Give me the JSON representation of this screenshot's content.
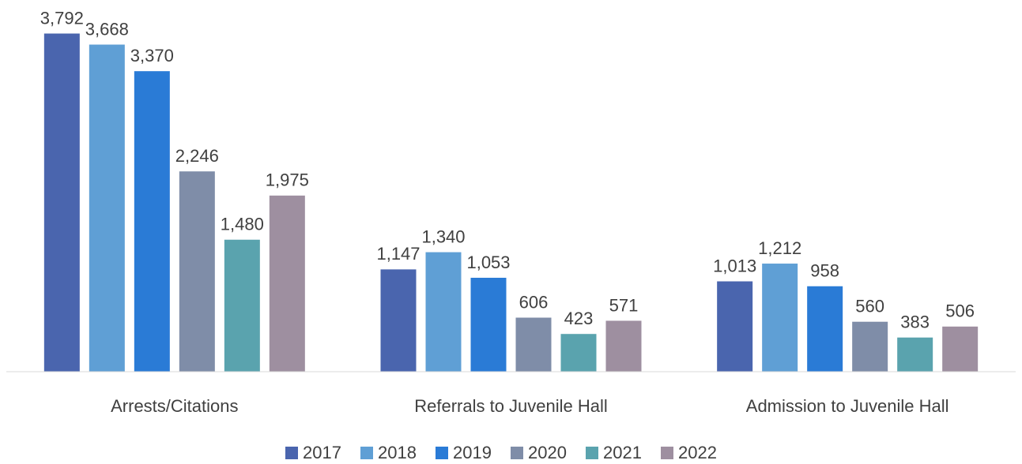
{
  "chart_data": {
    "type": "bar",
    "categories": [
      "Arrests/Citations",
      "Referrals to Juvenile Hall",
      "Admission to Juvenile Hall"
    ],
    "series": [
      {
        "name": "2017",
        "color": "#4a65ae",
        "values": [
          3792,
          1147,
          1013
        ],
        "value_labels": [
          "3,792",
          "1,147",
          "1,013"
        ]
      },
      {
        "name": "2018",
        "color": "#5f9fd5",
        "values": [
          3668,
          1340,
          1212
        ],
        "value_labels": [
          "3,668",
          "1,340",
          "1,212"
        ]
      },
      {
        "name": "2019",
        "color": "#2a7bd6",
        "values": [
          3370,
          1053,
          958
        ],
        "value_labels": [
          "3,370",
          "1,053",
          "958"
        ]
      },
      {
        "name": "2020",
        "color": "#7f8da8",
        "values": [
          2246,
          606,
          560
        ],
        "value_labels": [
          "2,246",
          "606",
          "560"
        ]
      },
      {
        "name": "2021",
        "color": "#5aa3ae",
        "values": [
          1480,
          423,
          383
        ],
        "value_labels": [
          "1,480",
          "423",
          "383"
        ]
      },
      {
        "name": "2022",
        "color": "#9e8fa0",
        "values": [
          1975,
          571,
          506
        ],
        "value_labels": [
          "1,975",
          "571",
          "506"
        ]
      }
    ],
    "ylim": [
      0,
      4000
    ],
    "legend": "bottom"
  }
}
